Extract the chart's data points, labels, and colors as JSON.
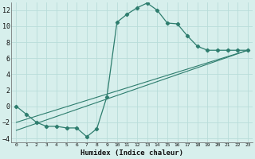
{
  "xlabel": "Humidex (Indice chaleur)",
  "bg_color": "#d7efec",
  "grid_color": "#b8ddd9",
  "line_color": "#2e7d6e",
  "xlim": [
    -0.5,
    23.5
  ],
  "ylim": [
    -4.5,
    13
  ],
  "xtick_labels": [
    "0",
    "1",
    "2",
    "3",
    "4",
    "5",
    "6",
    "7",
    "8",
    "9",
    "10",
    "11",
    "12",
    "13",
    "14",
    "15",
    "16",
    "17",
    "18",
    "19",
    "20",
    "21",
    "22",
    "23"
  ],
  "xtick_pos": [
    0,
    1,
    2,
    3,
    4,
    5,
    6,
    7,
    8,
    9,
    10,
    11,
    12,
    13,
    14,
    15,
    16,
    17,
    18,
    19,
    20,
    21,
    22,
    23
  ],
  "yticks": [
    -4,
    -2,
    0,
    2,
    4,
    6,
    8,
    10,
    12
  ],
  "curve1_x": [
    0,
    1,
    2,
    3,
    4,
    5,
    6,
    7,
    8,
    9,
    10,
    11,
    12,
    13,
    14,
    15,
    16,
    17,
    18,
    19,
    20,
    21,
    22,
    23
  ],
  "curve1_y": [
    0,
    -1.0,
    -2.0,
    -2.5,
    -2.5,
    -2.7,
    -2.7,
    -3.8,
    -2.8,
    1.2,
    10.5,
    11.5,
    12.3,
    12.9,
    12.0,
    10.4,
    10.3,
    8.8,
    7.5,
    7.0,
    7.0,
    7.0,
    7.0,
    7.0
  ],
  "line1_x": [
    0,
    23
  ],
  "line1_y": [
    -3.0,
    7.0
  ],
  "line2_x": [
    0,
    23
  ],
  "line2_y": [
    -2.0,
    7.0
  ]
}
